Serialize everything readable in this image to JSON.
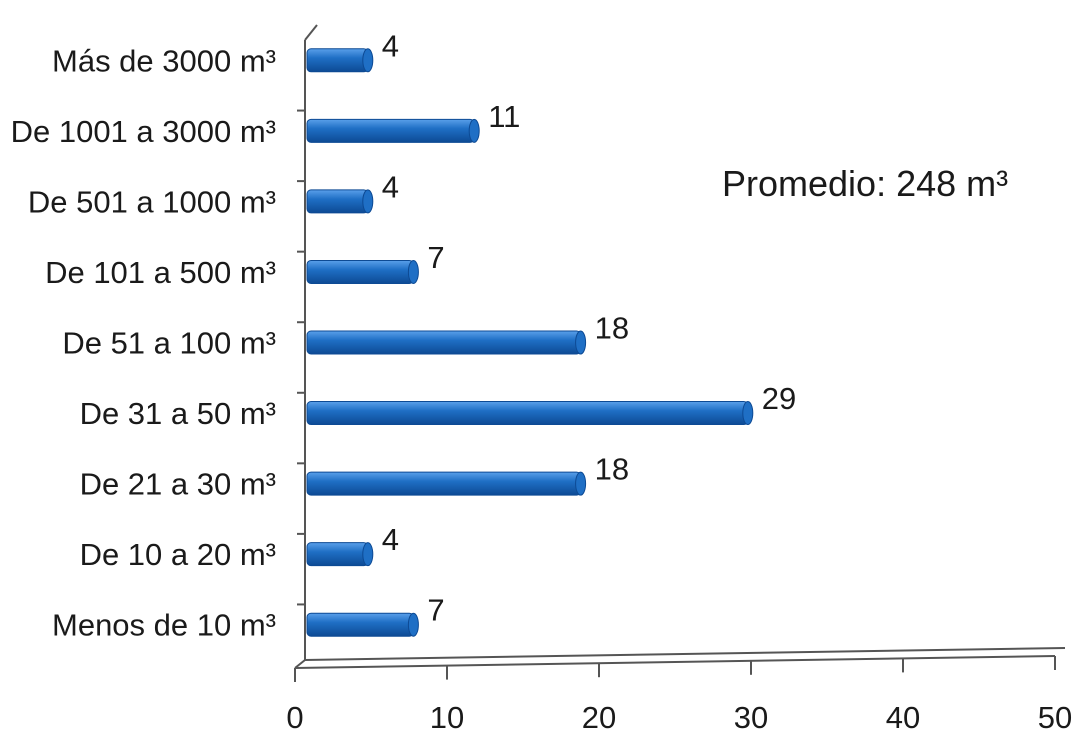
{
  "chart_data": {
    "type": "bar",
    "orientation": "horizontal",
    "categories": [
      "Menos de 10 m³",
      "De 10 a 20 m³",
      "De 21 a 30 m³",
      "De 31 a 50 m³",
      "De 51 a 100 m³",
      "De 101 a 500 m³",
      "De 501 a 1000 m³",
      "De 1001 a 3000 m³",
      "Más de 3000 m³"
    ],
    "values": [
      7,
      4,
      18,
      29,
      18,
      7,
      4,
      11,
      4
    ],
    "data_labels": [
      "7",
      "4",
      "18",
      "29",
      "18",
      "7",
      "4",
      "11",
      "4"
    ],
    "xlim": [
      0,
      50
    ],
    "x_ticks": [
      0,
      10,
      20,
      30,
      40,
      50
    ],
    "x_tick_labels": [
      "0",
      "10",
      "20",
      "30",
      "40",
      "50"
    ],
    "title": "",
    "xlabel": "",
    "ylabel": "",
    "annotation": "Promedio: 248 m³",
    "grid": false,
    "legend": "none",
    "colors": {
      "bar_fill": "#1f6fc5",
      "bar_light": "#5aa0ea",
      "bar_dark": "#0d4a94",
      "axis": "#555555"
    }
  }
}
